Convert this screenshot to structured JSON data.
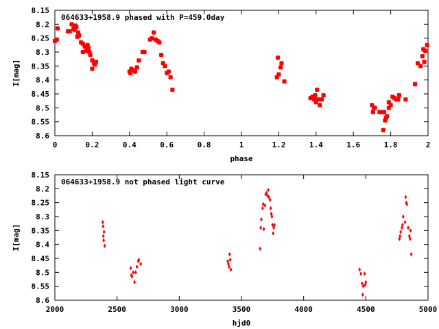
{
  "chart_data": [
    {
      "type": "scatter",
      "title": "064633+1958.9 phased with P=459.0day",
      "xlabel": "phase",
      "ylabel": "I[mag]",
      "xlim": [
        0,
        2
      ],
      "ylim": [
        8.15,
        8.6
      ],
      "y_inverted": true,
      "grid": false,
      "legend": "none",
      "marker_color": "#ff0000",
      "xticks": [
        "0",
        "0.2",
        "0.4",
        "0.6",
        "0.8",
        "1",
        "1.2",
        "1.4",
        "1.6",
        "1.8",
        "2"
      ],
      "yticks": [
        "8.15",
        "8.2",
        "8.25",
        "8.3",
        "8.35",
        "8.4",
        "8.45",
        "8.5",
        "8.55",
        "8.6"
      ],
      "series": [
        {
          "points": [
            [
              0.0,
              8.26
            ],
            [
              0.01,
              8.255
            ],
            [
              0.015,
              8.215
            ],
            [
              0.07,
              8.225
            ],
            [
              0.08,
              8.225
            ],
            [
              0.09,
              8.2
            ],
            [
              0.1,
              8.215
            ],
            [
              0.105,
              8.22
            ],
            [
              0.11,
              8.205
            ],
            [
              0.115,
              8.21
            ],
            [
              0.12,
              8.245
            ],
            [
              0.125,
              8.23
            ],
            [
              0.13,
              8.24
            ],
            [
              0.14,
              8.265
            ],
            [
              0.15,
              8.27
            ],
            [
              0.15,
              8.3
            ],
            [
              0.16,
              8.28
            ],
            [
              0.17,
              8.295
            ],
            [
              0.175,
              8.275
            ],
            [
              0.18,
              8.285
            ],
            [
              0.185,
              8.3
            ],
            [
              0.19,
              8.31
            ],
            [
              0.2,
              8.33
            ],
            [
              0.2,
              8.36
            ],
            [
              0.21,
              8.34
            ],
            [
              0.215,
              8.345
            ],
            [
              0.22,
              8.335
            ],
            [
              0.4,
              8.37
            ],
            [
              0.405,
              8.375
            ],
            [
              0.41,
              8.36
            ],
            [
              0.42,
              8.365
            ],
            [
              0.43,
              8.37
            ],
            [
              0.44,
              8.355
            ],
            [
              0.45,
              8.33
            ],
            [
              0.47,
              8.3
            ],
            [
              0.48,
              8.3
            ],
            [
              0.51,
              8.255
            ],
            [
              0.52,
              8.25
            ],
            [
              0.53,
              8.23
            ],
            [
              0.54,
              8.255
            ],
            [
              0.55,
              8.26
            ],
            [
              0.56,
              8.265
            ],
            [
              0.57,
              8.31
            ],
            [
              0.58,
              8.34
            ],
            [
              0.59,
              8.35
            ],
            [
              0.6,
              8.375
            ],
            [
              0.61,
              8.37
            ],
            [
              0.62,
              8.39
            ],
            [
              0.63,
              8.435
            ],
            [
              1.19,
              8.39
            ],
            [
              1.195,
              8.32
            ],
            [
              1.2,
              8.38
            ],
            [
              1.21,
              8.355
            ],
            [
              1.215,
              8.34
            ],
            [
              1.23,
              8.405
            ],
            [
              1.37,
              8.465
            ],
            [
              1.38,
              8.46
            ],
            [
              1.39,
              8.47
            ],
            [
              1.395,
              8.455
            ],
            [
              1.4,
              8.48
            ],
            [
              1.405,
              8.435
            ],
            [
              1.41,
              8.47
            ],
            [
              1.42,
              8.49
            ],
            [
              1.43,
              8.47
            ],
            [
              1.44,
              8.455
            ],
            [
              1.7,
              8.49
            ],
            [
              1.705,
              8.515
            ],
            [
              1.71,
              8.5
            ],
            [
              1.715,
              8.5
            ],
            [
              1.74,
              8.515
            ],
            [
              1.75,
              8.515
            ],
            [
              1.76,
              8.58
            ],
            [
              1.765,
              8.515
            ],
            [
              1.77,
              8.545
            ],
            [
              1.775,
              8.535
            ],
            [
              1.78,
              8.53
            ],
            [
              1.79,
              8.5
            ],
            [
              1.79,
              8.48
            ],
            [
              1.8,
              8.49
            ],
            [
              1.81,
              8.46
            ],
            [
              1.82,
              8.465
            ],
            [
              1.83,
              8.47
            ],
            [
              1.84,
              8.47
            ],
            [
              1.845,
              8.455
            ],
            [
              1.88,
              8.47
            ],
            [
              1.93,
              8.415
            ],
            [
              1.945,
              8.34
            ],
            [
              1.96,
              8.35
            ],
            [
              1.97,
              8.315
            ],
            [
              1.975,
              8.29
            ],
            [
              1.98,
              8.335
            ],
            [
              1.985,
              8.295
            ],
            [
              1.995,
              8.275
            ]
          ]
        }
      ]
    },
    {
      "type": "scatter",
      "title": "064633+1958.9 not phased light curve",
      "xlabel": "hjd0",
      "ylabel": "I[mag]",
      "xlim": [
        2000,
        5000
      ],
      "ylim": [
        8.15,
        8.6
      ],
      "y_inverted": true,
      "grid": false,
      "legend": "none",
      "marker_color": "#ff0000",
      "xticks": [
        "2000",
        "2500",
        "3000",
        "3500",
        "4000",
        "4500",
        "5000"
      ],
      "yticks": [
        "8.15",
        "8.2",
        "8.25",
        "8.3",
        "8.35",
        "8.4",
        "8.45",
        "8.5",
        "8.55",
        "8.6"
      ],
      "series": [
        {
          "points": [
            [
              2385,
              8.32
            ],
            [
              2388,
              8.335
            ],
            [
              2390,
              8.37
            ],
            [
              2392,
              8.385
            ],
            [
              2395,
              8.355
            ],
            [
              2400,
              8.405
            ],
            [
              2610,
              8.485
            ],
            [
              2615,
              8.51
            ],
            [
              2620,
              8.515
            ],
            [
              2630,
              8.5
            ],
            [
              2640,
              8.535
            ],
            [
              2650,
              8.5
            ],
            [
              2660,
              8.48
            ],
            [
              2670,
              8.46
            ],
            [
              2675,
              8.455
            ],
            [
              2690,
              8.47
            ],
            [
              3390,
              8.46
            ],
            [
              3395,
              8.47
            ],
            [
              3400,
              8.48
            ],
            [
              3405,
              8.435
            ],
            [
              3410,
              8.455
            ],
            [
              3415,
              8.49
            ],
            [
              3650,
              8.415
            ],
            [
              3655,
              8.34
            ],
            [
              3660,
              8.31
            ],
            [
              3670,
              8.27
            ],
            [
              3675,
              8.255
            ],
            [
              3680,
              8.345
            ],
            [
              3690,
              8.26
            ],
            [
              3695,
              8.22
            ],
            [
              3700,
              8.215
            ],
            [
              3710,
              8.225
            ],
            [
              3715,
              8.205
            ],
            [
              3720,
              8.23
            ],
            [
              3730,
              8.24
            ],
            [
              3735,
              8.27
            ],
            [
              3740,
              8.29
            ],
            [
              3745,
              8.3
            ],
            [
              3750,
              8.33
            ],
            [
              3755,
              8.36
            ],
            [
              3760,
              8.34
            ],
            [
              3765,
              8.33
            ],
            [
              4450,
              8.49
            ],
            [
              4460,
              8.505
            ],
            [
              4470,
              8.54
            ],
            [
              4475,
              8.58
            ],
            [
              4480,
              8.55
            ],
            [
              4490,
              8.505
            ],
            [
              4495,
              8.545
            ],
            [
              4500,
              8.535
            ],
            [
              4770,
              8.38
            ],
            [
              4775,
              8.37
            ],
            [
              4780,
              8.355
            ],
            [
              4790,
              8.34
            ],
            [
              4795,
              8.33
            ],
            [
              4800,
              8.3
            ],
            [
              4815,
              8.32
            ],
            [
              4820,
              8.23
            ],
            [
              4825,
              8.25
            ],
            [
              4830,
              8.255
            ],
            [
              4840,
              8.34
            ],
            [
              4850,
              8.37
            ],
            [
              4855,
              8.38
            ],
            [
              4860,
              8.35
            ],
            [
              4865,
              8.435
            ]
          ]
        }
      ]
    }
  ]
}
